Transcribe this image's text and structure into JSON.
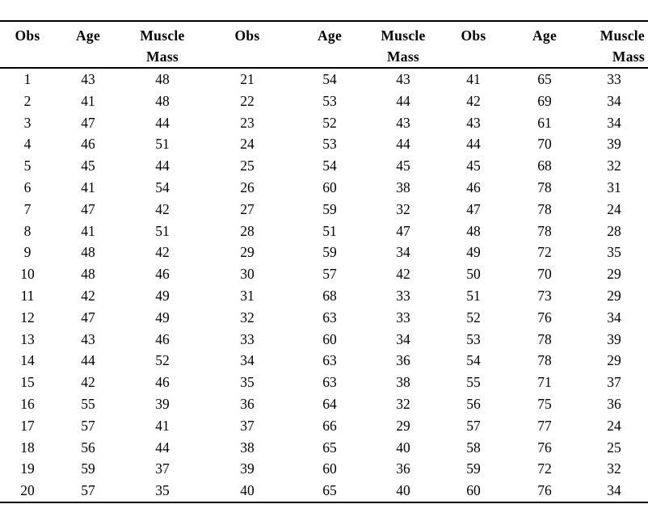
{
  "page": {
    "background_color": "#ffffff",
    "text_color": "#000000",
    "rule_color": "#000000"
  },
  "table": {
    "header_groups": [
      {
        "obs": "Obs",
        "age": "Age",
        "muscle_line1": "Muscle",
        "muscle_line2": "Mass"
      },
      {
        "obs": "Obs",
        "age": "Age",
        "muscle_line1": "Muscle",
        "muscle_line2": "Mass"
      },
      {
        "obs": "Obs",
        "age": "Age",
        "muscle_line1": "Muscle",
        "muscle_line2": "Mass"
      }
    ],
    "rows": [
      [
        1,
        43,
        48,
        21,
        54,
        43,
        41,
        65,
        33
      ],
      [
        2,
        41,
        48,
        22,
        53,
        44,
        42,
        69,
        34
      ],
      [
        3,
        47,
        44,
        23,
        52,
        43,
        43,
        61,
        34
      ],
      [
        4,
        46,
        51,
        24,
        53,
        44,
        44,
        70,
        39
      ],
      [
        5,
        45,
        44,
        25,
        54,
        45,
        45,
        68,
        32
      ],
      [
        6,
        41,
        54,
        26,
        60,
        38,
        46,
        78,
        31
      ],
      [
        7,
        47,
        42,
        27,
        59,
        32,
        47,
        78,
        24
      ],
      [
        8,
        41,
        51,
        28,
        51,
        47,
        48,
        78,
        28
      ],
      [
        9,
        48,
        42,
        29,
        59,
        34,
        49,
        72,
        35
      ],
      [
        10,
        48,
        46,
        30,
        57,
        42,
        50,
        70,
        29
      ],
      [
        11,
        42,
        49,
        31,
        68,
        33,
        51,
        73,
        29
      ],
      [
        12,
        47,
        49,
        32,
        63,
        33,
        52,
        76,
        34
      ],
      [
        13,
        43,
        46,
        33,
        60,
        34,
        53,
        78,
        39
      ],
      [
        14,
        44,
        52,
        34,
        63,
        36,
        54,
        78,
        29
      ],
      [
        15,
        42,
        46,
        35,
        63,
        38,
        55,
        71,
        37
      ],
      [
        16,
        55,
        39,
        36,
        64,
        32,
        56,
        75,
        36
      ],
      [
        17,
        57,
        41,
        37,
        66,
        29,
        57,
        77,
        24
      ],
      [
        18,
        56,
        44,
        38,
        65,
        40,
        58,
        76,
        25
      ],
      [
        19,
        59,
        37,
        39,
        60,
        36,
        59,
        72,
        32
      ],
      [
        20,
        57,
        35,
        40,
        65,
        40,
        60,
        76,
        34
      ]
    ]
  }
}
